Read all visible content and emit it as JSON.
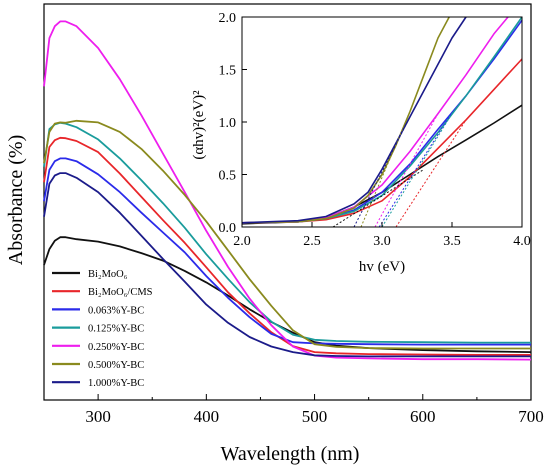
{
  "chart_data": [
    {
      "type": "line",
      "title": "",
      "xlabel": "Wavelength (nm)",
      "ylabel": "Absorbance (%)",
      "xlim": [
        250,
        700
      ],
      "ylim": [
        0,
        100
      ],
      "y_ticks_shown": false,
      "x_ticks": [
        300,
        400,
        500,
        600,
        700
      ],
      "grid": false,
      "legend_position": "bottom-left",
      "note": "y axis has no tick labels; y values below are relative absorbance estimated on a 0-100 scale",
      "series": [
        {
          "name": "Bi₂MoO₆",
          "color": "#111111",
          "x": [
            250,
            255,
            260,
            265,
            270,
            280,
            300,
            320,
            340,
            360,
            380,
            400,
            420,
            440,
            460,
            480,
            500,
            520,
            550,
            600,
            650,
            700
          ],
          "y": [
            34.1,
            38.1,
            40.2,
            41.1,
            41.1,
            40.6,
            40.0,
            38.8,
            37.1,
            35.2,
            32.6,
            29.7,
            26.4,
            22.9,
            19.7,
            17.0,
            14.6,
            13.7,
            13.1,
            12.6,
            12.3,
            12.1
          ]
        },
        {
          "name": "Bi₂MoO₆/CMS",
          "color": "#e8262a",
          "x": [
            250,
            255,
            260,
            265,
            270,
            280,
            300,
            320,
            340,
            360,
            380,
            400,
            420,
            440,
            460,
            480,
            500,
            520,
            550,
            600,
            650,
            700
          ],
          "y": [
            55.0,
            63.9,
            65.6,
            66.2,
            66.1,
            65.4,
            62.6,
            57.2,
            51.3,
            45.4,
            39.7,
            33.5,
            27.2,
            21.9,
            17.1,
            13.6,
            12.1,
            11.8,
            11.6,
            11.5,
            11.4,
            11.4
          ]
        },
        {
          "name": "0.063%Y-BC",
          "color": "#2b2bea",
          "x": [
            250,
            255,
            260,
            265,
            270,
            280,
            300,
            320,
            340,
            360,
            380,
            400,
            420,
            440,
            460,
            480,
            500,
            520,
            550,
            600,
            650,
            700
          ],
          "y": [
            50.2,
            58.1,
            60.3,
            61.0,
            61.0,
            60.3,
            57.0,
            52.5,
            47.3,
            42.3,
            37.3,
            31.3,
            25.8,
            20.9,
            16.7,
            14.6,
            14.3,
            14.2,
            14.1,
            14.0,
            14.0,
            14.0
          ]
        },
        {
          "name": "0.125%Y-BC",
          "color": "#1a9c9c",
          "x": [
            250,
            255,
            260,
            265,
            270,
            280,
            300,
            320,
            340,
            360,
            380,
            400,
            420,
            440,
            460,
            480,
            500,
            520,
            550,
            600,
            650,
            700
          ],
          "y": [
            58.9,
            68.4,
            69.6,
            70.0,
            69.8,
            68.9,
            65.8,
            61.0,
            55.5,
            49.7,
            43.5,
            36.8,
            30.6,
            24.7,
            19.8,
            16.5,
            15.2,
            14.9,
            14.7,
            14.6,
            14.5,
            14.5
          ]
        },
        {
          "name": "0.250%Y-BC",
          "color": "#ee1eee",
          "x": [
            250,
            255,
            260,
            265,
            270,
            280,
            300,
            320,
            340,
            360,
            380,
            400,
            420,
            440,
            460,
            480,
            500,
            520,
            550,
            600,
            650,
            700
          ],
          "y": [
            79.2,
            91.4,
            94.4,
            95.6,
            95.6,
            94.4,
            88.9,
            81.0,
            71.9,
            62.2,
            52.5,
            42.7,
            33.6,
            25.6,
            18.9,
            13.5,
            11.2,
            10.7,
            10.5,
            10.3,
            10.3,
            10.2
          ]
        },
        {
          "name": "0.500%Y-BC",
          "color": "#8a8a1e",
          "x": [
            250,
            255,
            260,
            265,
            270,
            280,
            300,
            320,
            340,
            360,
            380,
            400,
            420,
            440,
            460,
            480,
            500,
            520,
            550,
            600,
            650,
            700
          ],
          "y": [
            59.8,
            67.7,
            69.8,
            70.1,
            70.0,
            70.5,
            70.1,
            67.7,
            63.4,
            57.9,
            51.8,
            45.1,
            37.8,
            30.5,
            23.8,
            17.6,
            14.1,
            13.4,
            13.1,
            13.0,
            13.0,
            13.0
          ]
        },
        {
          "name": "1.000%Y-BC",
          "color": "#1b1b8a",
          "x": [
            250,
            255,
            260,
            265,
            270,
            280,
            300,
            320,
            340,
            360,
            380,
            400,
            420,
            440,
            460,
            480,
            500,
            520,
            550,
            600,
            650,
            700
          ],
          "y": [
            46.3,
            54.6,
            56.7,
            57.3,
            57.3,
            56.1,
            52.5,
            47.3,
            41.5,
            35.6,
            29.9,
            24.1,
            19.5,
            15.9,
            13.5,
            12.1,
            11.3,
            11.1,
            11.0,
            11.0,
            11.0,
            11.0
          ]
        }
      ],
      "legend": [
        {
          "label": "Bi₂MoO₆",
          "color": "#111111"
        },
        {
          "label": "Bi₂MoO₆/CMS",
          "color": "#e8262a"
        },
        {
          "label": "0.063%Y-BC",
          "color": "#2b2bea"
        },
        {
          "label": "0.125%Y-BC",
          "color": "#1a9c9c"
        },
        {
          "label": "0.250%Y-BC",
          "color": "#ee1eee"
        },
        {
          "label": "0.500%Y-BC",
          "color": "#8a8a1e"
        },
        {
          "label": "1.000%Y-BC",
          "color": "#1b1b8a"
        }
      ]
    },
    {
      "type": "line",
      "title": "",
      "xlabel": "hv (eV)",
      "ylabel": "(αhv)²(eV)²",
      "xlim": [
        2.0,
        4.0
      ],
      "ylim": [
        0.0,
        2.0
      ],
      "x_ticks": [
        2.0,
        2.5,
        3.0,
        3.5,
        4.0
      ],
      "y_ticks": [
        0.0,
        0.5,
        1.0,
        1.5,
        2.0
      ],
      "grid": false,
      "series": [
        {
          "color": "#111111",
          "x": [
            2.0,
            2.4,
            2.6,
            2.8,
            3.0,
            3.2,
            3.4,
            3.6,
            3.8,
            4.0
          ],
          "y": [
            0.03,
            0.05,
            0.09,
            0.19,
            0.33,
            0.5,
            0.67,
            0.83,
            0.99,
            1.16
          ]
        },
        {
          "color": "#e8262a",
          "x": [
            2.0,
            2.4,
            2.6,
            2.8,
            3.0,
            3.2,
            3.4,
            3.6,
            3.8,
            4.0
          ],
          "y": [
            0.04,
            0.05,
            0.07,
            0.13,
            0.25,
            0.48,
            0.75,
            1.02,
            1.31,
            1.6
          ]
        },
        {
          "color": "#2b2bea",
          "x": [
            2.0,
            2.4,
            2.6,
            2.8,
            3.0,
            3.2,
            3.4,
            3.6,
            3.8,
            4.0
          ],
          "y": [
            0.04,
            0.05,
            0.08,
            0.16,
            0.33,
            0.6,
            0.93,
            1.25,
            1.6,
            1.97
          ]
        },
        {
          "color": "#1a9c9c",
          "x": [
            2.0,
            2.4,
            2.6,
            2.8,
            3.0,
            3.2,
            3.4,
            3.6,
            3.8,
            4.0
          ],
          "y": [
            0.04,
            0.05,
            0.08,
            0.15,
            0.3,
            0.58,
            0.9,
            1.25,
            1.62,
            2.0
          ]
        },
        {
          "color": "#ee1eee",
          "x": [
            2.0,
            2.4,
            2.6,
            2.8,
            3.0,
            3.2,
            3.4,
            3.6,
            3.8,
            3.9
          ],
          "y": [
            0.04,
            0.05,
            0.09,
            0.19,
            0.4,
            0.72,
            1.08,
            1.45,
            1.84,
            2.0
          ]
        },
        {
          "color": "#8a8a1e",
          "x": [
            2.0,
            2.4,
            2.6,
            2.8,
            2.9,
            3.0,
            3.1,
            3.2,
            3.3,
            3.4,
            3.48
          ],
          "y": [
            0.04,
            0.05,
            0.08,
            0.18,
            0.3,
            0.5,
            0.78,
            1.1,
            1.45,
            1.8,
            2.0
          ]
        },
        {
          "color": "#1b1b8a",
          "x": [
            2.0,
            2.4,
            2.6,
            2.8,
            2.9,
            3.0,
            3.1,
            3.2,
            3.3,
            3.4,
            3.5,
            3.6
          ],
          "y": [
            0.04,
            0.06,
            0.1,
            0.22,
            0.33,
            0.55,
            0.8,
            1.05,
            1.3,
            1.55,
            1.8,
            2.0
          ]
        }
      ],
      "tangents": [
        {
          "color": "#111111",
          "x": [
            2.65,
            3.3
          ],
          "y": [
            0.0,
            0.55
          ]
        },
        {
          "color": "#e8262a",
          "x": [
            3.1,
            3.6
          ],
          "y": [
            0.0,
            1.02
          ]
        },
        {
          "color": "#2b2bea",
          "x": [
            2.98,
            3.5
          ],
          "y": [
            0.0,
            1.09
          ]
        },
        {
          "color": "#1a9c9c",
          "x": [
            3.0,
            3.5
          ],
          "y": [
            0.0,
            1.08
          ]
        },
        {
          "color": "#ee1eee",
          "x": [
            2.95,
            3.4
          ],
          "y": [
            0.0,
            1.08
          ]
        },
        {
          "color": "#8a8a1e",
          "x": [
            2.85,
            3.2
          ],
          "y": [
            0.0,
            1.1
          ]
        },
        {
          "color": "#1b1b8a",
          "x": [
            2.8,
            3.2
          ],
          "y": [
            0.0,
            1.05
          ]
        }
      ]
    }
  ]
}
